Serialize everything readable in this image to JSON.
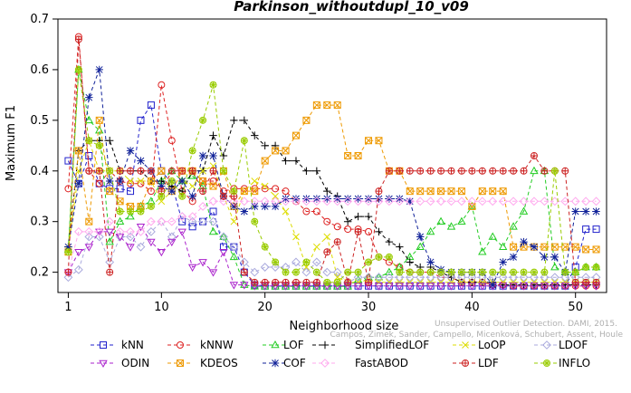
{
  "chart_data": {
    "type": "line",
    "title": "Parkinson_withoutdupl_10_v09",
    "xlabel": "Neighborhood size",
    "ylabel": "Maximum F1",
    "xlim": [
      0,
      53
    ],
    "ylim": [
      0.16,
      0.7
    ],
    "x_ticks": [
      1,
      10,
      20,
      30,
      40,
      50
    ],
    "y_ticks": [
      0.2,
      0.3,
      0.4,
      0.5,
      0.6,
      0.7
    ],
    "grid": false,
    "legend_position": "bottom",
    "x": [
      1,
      2,
      3,
      4,
      5,
      6,
      7,
      8,
      9,
      10,
      11,
      12,
      13,
      14,
      15,
      16,
      17,
      18,
      19,
      20,
      21,
      22,
      23,
      24,
      25,
      26,
      27,
      28,
      29,
      30,
      31,
      32,
      33,
      34,
      35,
      36,
      37,
      38,
      39,
      40,
      41,
      42,
      43,
      44,
      45,
      46,
      47,
      48,
      49,
      50,
      51,
      52
    ],
    "series": [
      {
        "name": "kNN",
        "color": "#2222cc",
        "marker": "square",
        "values": [
          0.42,
          0.375,
          0.43,
          0.375,
          0.365,
          0.365,
          0.36,
          0.5,
          0.53,
          0.4,
          0.375,
          0.3,
          0.29,
          0.3,
          0.32,
          0.25,
          0.25,
          0.2,
          0.175,
          0.173,
          0.173,
          0.173,
          0.173,
          0.173,
          0.173,
          0.173,
          0.173,
          0.173,
          0.173,
          0.173,
          0.173,
          0.173,
          0.173,
          0.173,
          0.173,
          0.173,
          0.173,
          0.173,
          0.173,
          0.173,
          0.173,
          0.173,
          0.173,
          0.173,
          0.173,
          0.173,
          0.173,
          0.173,
          0.173,
          0.21,
          0.285,
          0.285
        ]
      },
      {
        "name": "kNNW",
        "color": "#dd2222",
        "marker": "circle",
        "values": [
          0.365,
          0.665,
          0.4,
          0.375,
          0.4,
          0.38,
          0.375,
          0.375,
          0.36,
          0.57,
          0.46,
          0.36,
          0.34,
          0.38,
          0.38,
          0.36,
          0.365,
          0.365,
          0.365,
          0.365,
          0.365,
          0.36,
          0.34,
          0.32,
          0.32,
          0.3,
          0.29,
          0.285,
          0.285,
          0.28,
          0.23,
          0.22,
          0.21,
          0.2,
          0.2,
          0.2,
          0.19,
          0.19,
          0.18,
          0.18,
          0.18,
          0.175,
          0.175,
          0.173,
          0.173,
          0.173,
          0.173,
          0.173,
          0.173,
          0.173,
          0.173,
          0.173
        ]
      },
      {
        "name": "LOF",
        "color": "#22cc22",
        "marker": "triangle",
        "values": [
          0.245,
          0.6,
          0.5,
          0.48,
          0.26,
          0.3,
          0.31,
          0.33,
          0.34,
          0.38,
          0.4,
          0.38,
          0.39,
          0.37,
          0.28,
          0.27,
          0.23,
          0.175,
          0.172,
          0.172,
          0.172,
          0.172,
          0.172,
          0.172,
          0.172,
          0.172,
          0.172,
          0.172,
          0.185,
          0.19,
          0.19,
          0.2,
          0.21,
          0.23,
          0.25,
          0.28,
          0.3,
          0.29,
          0.3,
          0.33,
          0.24,
          0.27,
          0.25,
          0.29,
          0.32,
          0.4,
          0.4,
          0.21,
          0.2,
          0.2,
          0.21,
          0.21
        ]
      },
      {
        "name": "SimplifiedLOF",
        "color": "#000000",
        "marker": "plus",
        "values": [
          0.25,
          0.44,
          0.46,
          0.46,
          0.46,
          0.4,
          0.4,
          0.4,
          0.38,
          0.38,
          0.37,
          0.36,
          0.4,
          0.4,
          0.47,
          0.43,
          0.5,
          0.5,
          0.47,
          0.45,
          0.45,
          0.42,
          0.42,
          0.4,
          0.4,
          0.36,
          0.35,
          0.3,
          0.31,
          0.31,
          0.28,
          0.26,
          0.25,
          0.22,
          0.21,
          0.21,
          0.2,
          0.19,
          0.18,
          0.18,
          0.18,
          0.18,
          0.175,
          0.175,
          0.175,
          0.175,
          0.175,
          0.175,
          0.175,
          0.175,
          0.175,
          0.175
        ]
      },
      {
        "name": "LoOP",
        "color": "#dddd00",
        "marker": "x",
        "values": [
          0.245,
          0.4,
          0.46,
          0.4,
          0.4,
          0.4,
          0.38,
          0.38,
          0.38,
          0.34,
          0.36,
          0.38,
          0.37,
          0.4,
          0.41,
          0.35,
          0.3,
          0.36,
          0.38,
          0.37,
          0.35,
          0.32,
          0.27,
          0.21,
          0.25,
          0.27,
          0.19,
          0.18,
          0.18,
          0.185,
          0.18,
          0.18,
          0.18,
          0.18,
          0.18,
          0.18,
          0.18,
          0.18,
          0.18,
          0.18,
          0.18,
          0.18,
          0.18,
          0.18,
          0.18,
          0.18,
          0.18,
          0.18,
          0.18,
          0.18,
          0.18,
          0.18
        ]
      },
      {
        "name": "LDOF",
        "color": "#aaaadd",
        "marker": "diamond",
        "values": [
          0.19,
          0.205,
          0.27,
          0.27,
          0.22,
          0.27,
          0.27,
          0.25,
          0.28,
          0.3,
          0.27,
          0.31,
          0.3,
          0.3,
          0.3,
          0.27,
          0.25,
          0.22,
          0.2,
          0.21,
          0.21,
          0.21,
          0.22,
          0.2,
          0.22,
          0.2,
          0.2,
          0.18,
          0.19,
          0.19,
          0.19,
          0.19,
          0.19,
          0.19,
          0.19,
          0.19,
          0.19,
          0.19,
          0.19,
          0.19,
          0.19,
          0.19,
          0.19,
          0.19,
          0.19,
          0.19,
          0.19,
          0.19,
          0.19,
          0.19,
          0.19,
          0.19
        ]
      },
      {
        "name": "ODIN",
        "color": "#aa22cc",
        "marker": "triangle-down",
        "values": [
          0.2,
          0.24,
          0.25,
          0.28,
          0.28,
          0.27,
          0.25,
          0.29,
          0.26,
          0.24,
          0.26,
          0.28,
          0.21,
          0.22,
          0.2,
          0.24,
          0.175,
          0.175,
          0.173,
          0.173,
          0.173,
          0.173,
          0.173,
          0.173,
          0.173,
          0.173,
          0.173,
          0.173,
          0.173,
          0.173,
          0.173,
          0.173,
          0.173,
          0.173,
          0.173,
          0.173,
          0.173,
          0.173,
          0.173,
          0.173,
          0.173,
          0.173,
          0.173,
          0.173,
          0.173,
          0.173,
          0.173,
          0.173,
          0.173,
          0.173,
          0.173,
          0.173
        ]
      },
      {
        "name": "KDEOS",
        "color": "#ee9900",
        "marker": "square-x",
        "values": [
          0.24,
          0.44,
          0.3,
          0.5,
          0.36,
          0.34,
          0.33,
          0.33,
          0.38,
          0.4,
          0.36,
          0.4,
          0.4,
          0.38,
          0.37,
          0.4,
          0.33,
          0.36,
          0.36,
          0.42,
          0.44,
          0.44,
          0.47,
          0.5,
          0.53,
          0.53,
          0.53,
          0.43,
          0.43,
          0.46,
          0.46,
          0.4,
          0.4,
          0.36,
          0.36,
          0.36,
          0.36,
          0.36,
          0.36,
          0.33,
          0.36,
          0.36,
          0.36,
          0.25,
          0.25,
          0.25,
          0.25,
          0.25,
          0.25,
          0.25,
          0.245,
          0.245
        ]
      },
      {
        "name": "COF",
        "color": "#112299",
        "marker": "asterisk",
        "values": [
          0.25,
          0.375,
          0.545,
          0.6,
          0.38,
          0.38,
          0.44,
          0.42,
          0.4,
          0.37,
          0.36,
          0.38,
          0.35,
          0.43,
          0.43,
          0.35,
          0.33,
          0.32,
          0.33,
          0.33,
          0.33,
          0.345,
          0.345,
          0.345,
          0.345,
          0.345,
          0.345,
          0.345,
          0.345,
          0.345,
          0.345,
          0.345,
          0.345,
          0.34,
          0.27,
          0.22,
          0.205,
          0.2,
          0.2,
          0.2,
          0.2,
          0.175,
          0.22,
          0.23,
          0.26,
          0.25,
          0.23,
          0.23,
          0.2,
          0.32,
          0.32,
          0.32
        ]
      },
      {
        "name": "FastABOD",
        "color": "#ffaaee",
        "marker": "diamond",
        "values": [
          0.2,
          0.28,
          0.28,
          0.28,
          0.3,
          0.28,
          0.28,
          0.28,
          0.3,
          0.3,
          0.3,
          0.31,
          0.31,
          0.33,
          0.34,
          0.34,
          0.34,
          0.34,
          0.34,
          0.34,
          0.34,
          0.34,
          0.34,
          0.34,
          0.34,
          0.34,
          0.34,
          0.34,
          0.34,
          0.34,
          0.34,
          0.34,
          0.34,
          0.34,
          0.34,
          0.34,
          0.34,
          0.34,
          0.34,
          0.34,
          0.34,
          0.34,
          0.34,
          0.34,
          0.34,
          0.34,
          0.34,
          0.34,
          0.34,
          0.34,
          0.34,
          0.34
        ]
      },
      {
        "name": "LDF",
        "color": "#cc2222",
        "marker": "circle-plus",
        "values": [
          0.2,
          0.66,
          0.4,
          0.4,
          0.2,
          0.4,
          0.4,
          0.4,
          0.4,
          0.36,
          0.4,
          0.4,
          0.4,
          0.36,
          0.4,
          0.35,
          0.35,
          0.2,
          0.18,
          0.18,
          0.18,
          0.18,
          0.18,
          0.18,
          0.18,
          0.24,
          0.26,
          0.18,
          0.28,
          0.18,
          0.36,
          0.4,
          0.4,
          0.4,
          0.4,
          0.4,
          0.4,
          0.4,
          0.4,
          0.4,
          0.4,
          0.4,
          0.4,
          0.4,
          0.4,
          0.43,
          0.4,
          0.4,
          0.4,
          0.18,
          0.18,
          0.18
        ]
      },
      {
        "name": "INFLO",
        "color": "#99cc00",
        "marker": "circle-star",
        "values": [
          0.24,
          0.6,
          0.46,
          0.45,
          0.4,
          0.32,
          0.32,
          0.32,
          0.33,
          0.35,
          0.38,
          0.35,
          0.44,
          0.5,
          0.57,
          0.4,
          0.36,
          0.46,
          0.3,
          0.25,
          0.22,
          0.2,
          0.2,
          0.22,
          0.2,
          0.18,
          0.18,
          0.2,
          0.2,
          0.22,
          0.23,
          0.23,
          0.2,
          0.2,
          0.2,
          0.2,
          0.2,
          0.2,
          0.2,
          0.2,
          0.2,
          0.2,
          0.2,
          0.2,
          0.2,
          0.2,
          0.2,
          0.4,
          0.2,
          0.2,
          0.21,
          0.21
        ]
      }
    ],
    "legend_rows": [
      [
        "kNN",
        "kNNW",
        "LOF",
        "SimplifiedLOF",
        "LoOP",
        "LDOF"
      ],
      [
        "ODIN",
        "KDEOS",
        "COF",
        "FastABOD",
        "LDF",
        "INFLO"
      ]
    ]
  },
  "watermark": {
    "line1": "Unsupervised Outlier Detection. DAMI, 2015.",
    "line2": "Campos, Zimek, Sander, Campello, Micenková, Schubert, Assent, Houle"
  }
}
